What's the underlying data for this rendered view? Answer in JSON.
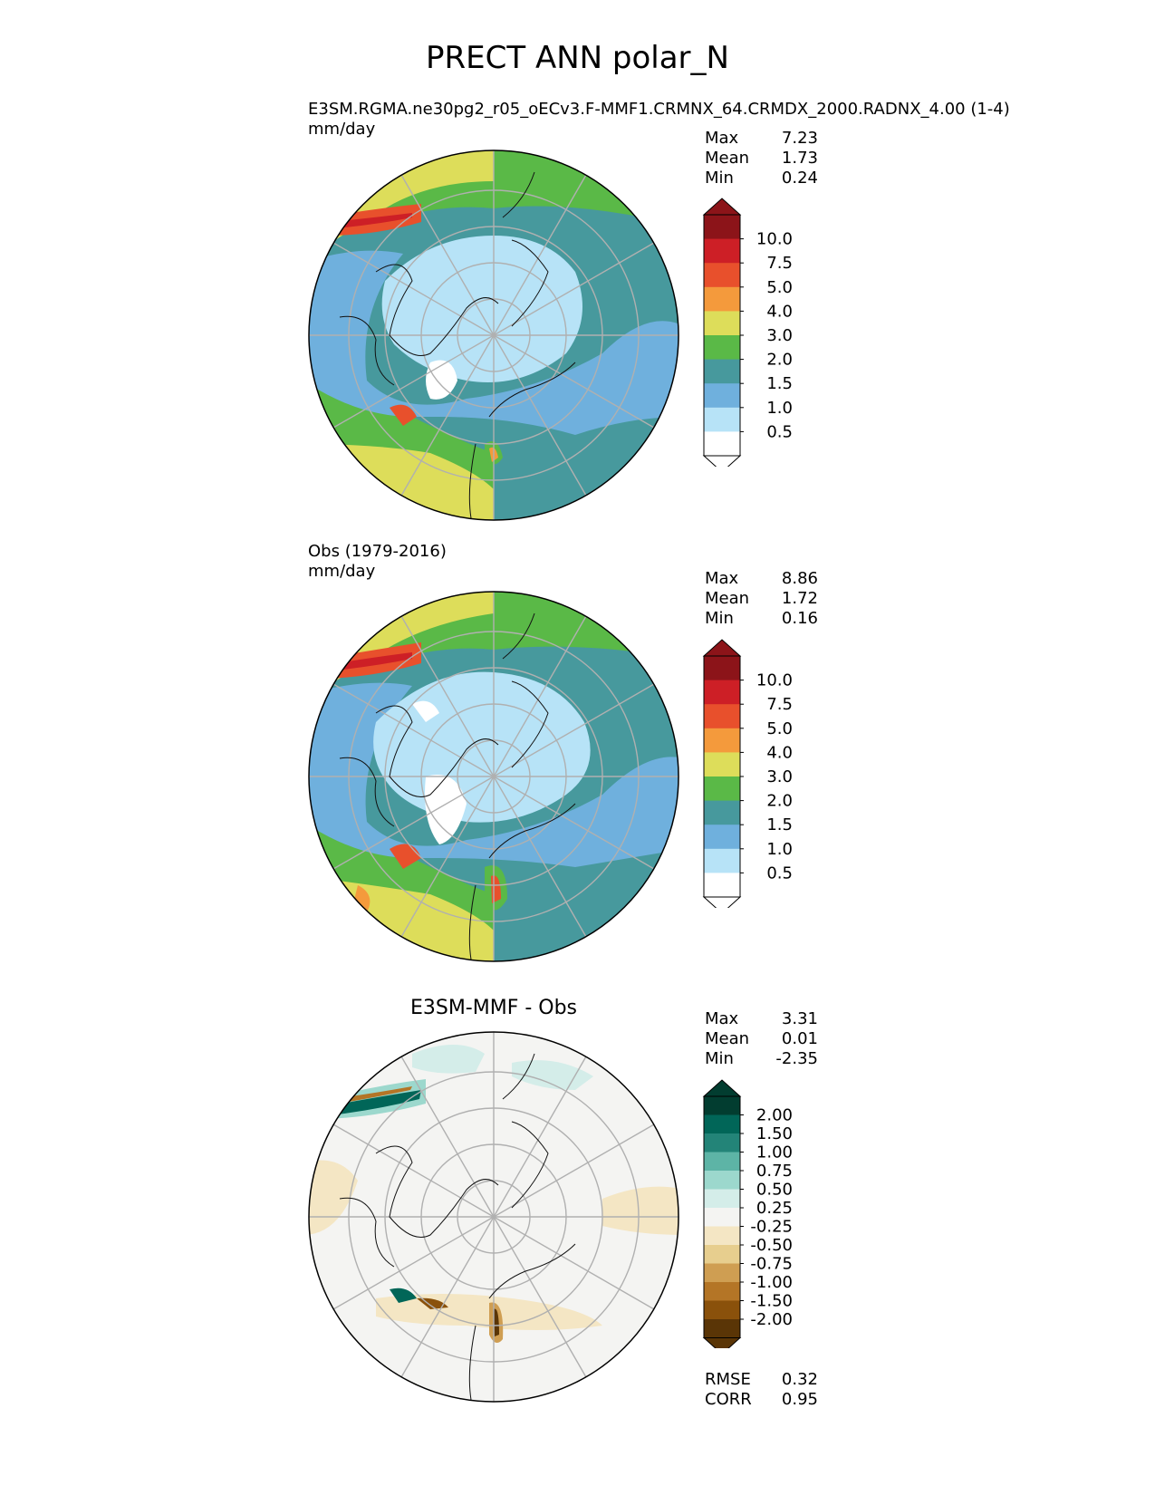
{
  "figure_title": "PRECT ANN polar_N",
  "colors": {
    "precip": [
      "#ffffff",
      "#b7e3f7",
      "#6fb0dd",
      "#47999d",
      "#5ab947",
      "#dddd5a",
      "#f49a3c",
      "#e8502c",
      "#cd1f26",
      "#8c1419"
    ],
    "diff": [
      "#5a3506",
      "#8a510b",
      "#b47526",
      "#cf9e52",
      "#e7ce8e",
      "#f4e6c4",
      "#f4f4f2",
      "#d4ede9",
      "#9cd8cd",
      "#5db4a6",
      "#238478",
      "#016658",
      "#023d30"
    ],
    "coast": "#111111",
    "grid": "#b0b0b0"
  },
  "panels": [
    {
      "id": "test",
      "title_line1": "E3SM.RGMA.ne30pg2_r05_oECv3.F-MMF1.CRMNX_64.CRMDX_2000.RADNX_4.00 (1-4)",
      "title_line2": "mm/day",
      "stats": [
        {
          "label": "Max",
          "value": "7.23"
        },
        {
          "label": "Mean",
          "value": "1.73"
        },
        {
          "label": "Min",
          "value": "0.24"
        }
      ],
      "colorbar_ticks": [
        "10.0",
        "7.5",
        "5.0",
        "4.0",
        "3.0",
        "2.0",
        "1.5",
        "1.0",
        "0.5"
      ]
    },
    {
      "id": "ref",
      "title_line1": "Obs (1979-2016)",
      "title_line2": "mm/day",
      "stats": [
        {
          "label": "Max",
          "value": "8.86"
        },
        {
          "label": "Mean",
          "value": "1.72"
        },
        {
          "label": "Min",
          "value": "0.16"
        }
      ],
      "colorbar_ticks": [
        "10.0",
        "7.5",
        "5.0",
        "4.0",
        "3.0",
        "2.0",
        "1.5",
        "1.0",
        "0.5"
      ]
    },
    {
      "id": "diff",
      "title_center": "E3SM-MMF - Obs",
      "stats": [
        {
          "label": "Max",
          "value": "3.31"
        },
        {
          "label": "Mean",
          "value": "0.01"
        },
        {
          "label": "Min",
          "value": "-2.35"
        }
      ],
      "colorbar_ticks": [
        "2.00",
        "1.50",
        "1.00",
        "0.75",
        "0.50",
        "0.25",
        "-0.25",
        "-0.50",
        "-0.75",
        "-1.00",
        "-1.50",
        "-2.00"
      ],
      "metrics": [
        {
          "label": "RMSE",
          "value": "0.32"
        },
        {
          "label": "CORR",
          "value": "0.95"
        }
      ]
    }
  ]
}
